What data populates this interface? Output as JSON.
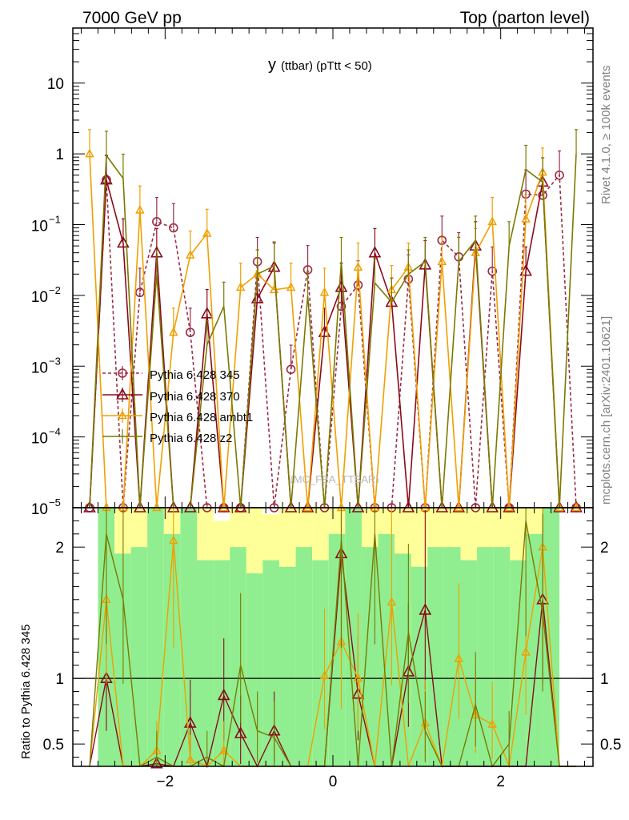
{
  "header": {
    "left": "7000 GeV pp",
    "right": "Top (parton level)"
  },
  "side_labels": {
    "right_top": "Rivet 4.1.0, ≥ 100k events",
    "right_bottom": "mcplots.cern.ch [arXiv:2401.10621]"
  },
  "watermark": "(MC_FBA_TTBAR)",
  "colors": {
    "p345": "#9b2d46",
    "p370": "#8b0a1a",
    "ambt1": "#f0a000",
    "z2": "#7a7a00",
    "band_green": "#90ee90",
    "band_yellow": "#ffff99"
  },
  "chart_data": {
    "type": "line",
    "title_main": "y",
    "title_sub": "(ttbar)  (pTtt < 50)",
    "xlim": [
      -3.1,
      3.1
    ],
    "ylim_log": [
      1e-05,
      60
    ],
    "ratio_ylim": [
      0.33,
      2.3
    ],
    "x_ticks": [
      -2,
      0,
      2
    ],
    "x_tick_labels": [
      "−2",
      "0",
      "2"
    ],
    "y_ticks": [
      {
        "value": 10,
        "label": "10"
      },
      {
        "value": 1,
        "label": "1"
      },
      {
        "value": 0.1,
        "label": "10",
        "exp": "−1"
      },
      {
        "value": 0.01,
        "label": "10",
        "exp": "−2"
      },
      {
        "value": 0.001,
        "label": "10",
        "exp": "−3"
      },
      {
        "value": 0.0001,
        "label": "10",
        "exp": "−4"
      },
      {
        "value": 1e-05,
        "label": "10",
        "exp": "−5"
      }
    ],
    "ratio_ticks": [
      {
        "value": 0.5,
        "label": "0.5"
      },
      {
        "value": 1,
        "label": "1"
      },
      {
        "value": 2,
        "label": "2"
      }
    ],
    "ratio_ylabel": "Ratio to Pythia 6.428 345",
    "x": [
      -2.9,
      -2.7,
      -2.5,
      -2.3,
      -2.1,
      -1.9,
      -1.7,
      -1.5,
      -1.3,
      -1.1,
      -0.9,
      -0.7,
      -0.5,
      -0.3,
      -0.1,
      0.1,
      0.3,
      0.5,
      0.7,
      0.9,
      1.1,
      1.3,
      1.5,
      1.7,
      1.9,
      2.1,
      2.3,
      2.5,
      2.7,
      2.9
    ],
    "series": [
      {
        "name": "Pythia 6.428 345",
        "key": "p345",
        "marker": "circle",
        "dash": "4,3",
        "values": [
          1e-05,
          0.43,
          1e-05,
          0.011,
          0.11,
          0.09,
          0.003,
          1e-05,
          1e-05,
          1e-05,
          0.03,
          1e-05,
          0.0009,
          0.023,
          1e-05,
          0.007,
          0.014,
          1e-05,
          1e-05,
          0.017,
          1e-05,
          0.06,
          0.035,
          1e-05,
          0.022,
          1e-05,
          0.27,
          0.26,
          0.5,
          1e-05
        ]
      },
      {
        "name": "Pythia 6.428 370",
        "key": "p370",
        "marker": "triangle",
        "dash": "",
        "values": [
          1e-05,
          0.43,
          0.055,
          1e-05,
          0.04,
          1e-05,
          1e-05,
          0.0055,
          1e-05,
          1e-05,
          0.009,
          0.025,
          1e-05,
          1e-05,
          0.003,
          0.013,
          1e-05,
          0.04,
          0.008,
          1e-05,
          0.027,
          1e-05,
          1e-05,
          0.05,
          1e-05,
          1e-05,
          0.022,
          0.4,
          1e-05,
          1e-05
        ]
      },
      {
        "name": "Pythia 6.428 ambt1",
        "key": "ambt1",
        "marker": "triangle-small",
        "dash": "",
        "values": [
          1.0,
          1e-05,
          1e-05,
          0.16,
          1e-05,
          0.003,
          0.037,
          0.075,
          1e-05,
          0.013,
          0.02,
          0.012,
          0.013,
          1e-05,
          0.011,
          1e-05,
          0.025,
          1e-05,
          0.012,
          0.025,
          1e-05,
          0.03,
          1e-05,
          0.04,
          0.11,
          1e-05,
          0.12,
          0.55,
          1e-05,
          1e-05
        ]
      },
      {
        "name": "Pythia 6.428 z2",
        "key": "z2",
        "marker": "none",
        "dash": "",
        "values": [
          1e-05,
          0.95,
          0.45,
          1e-05,
          0.02,
          1e-05,
          1e-05,
          0.002,
          0.007,
          1e-05,
          0.02,
          0.026,
          1e-05,
          0.01,
          1e-05,
          0.03,
          1e-05,
          0.015,
          0.008,
          0.02,
          0.03,
          1e-05,
          0.03,
          0.06,
          1e-05,
          0.05,
          0.6,
          0.4,
          1e-05,
          1.0
        ]
      }
    ],
    "ratio_series": [
      {
        "key": "p370",
        "values": [
          null,
          1.0,
          null,
          null,
          0.35,
          null,
          0.66,
          null,
          0.87,
          0.58,
          null,
          0.6,
          null,
          null,
          null,
          1.95,
          0.88,
          null,
          null,
          1.05,
          1.52,
          null,
          null,
          null,
          null,
          null,
          null,
          1.6,
          null,
          null
        ]
      },
      {
        "key": "ambt1",
        "values": [
          null,
          1.6,
          null,
          null,
          0.45,
          2.05,
          0.38,
          null,
          0.45,
          null,
          null,
          null,
          null,
          null,
          1.02,
          1.28,
          1.0,
          null,
          1.58,
          null,
          0.66,
          null,
          1.15,
          0.72,
          0.65,
          null,
          1.2,
          2.0,
          null,
          null
        ]
      },
      {
        "key": "z2",
        "values": [
          null,
          2.1,
          1.6,
          null,
          0.4,
          null,
          null,
          0.4,
          null,
          1.1,
          0.6,
          0.55,
          null,
          null,
          null,
          2.05,
          null,
          2.1,
          null,
          1.35,
          0.6,
          null,
          null,
          0.8,
          null,
          0.5,
          2.2,
          1.5,
          null,
          null
        ]
      }
    ],
    "band": {
      "x_range": [
        -2.8,
        2.7
      ],
      "green_top": [
        2.3,
        1.95,
        2.0,
        2.3,
        2.1,
        2.3,
        1.9,
        1.9,
        2.0,
        1.8,
        1.9,
        1.85,
        2.0,
        1.9,
        2.1,
        2.3,
        2.0,
        2.1,
        1.95,
        1.85,
        2.0,
        2.0,
        1.9,
        2.0,
        2.0,
        1.9,
        2.1,
        2.3
      ],
      "yellow_top": [
        2.3,
        2.3,
        2.3,
        2.3,
        2.3,
        2.3,
        2.3,
        2.2,
        2.3,
        2.3,
        2.25,
        2.3,
        2.3,
        2.3,
        2.3,
        2.3,
        2.3,
        2.3,
        2.3,
        2.3,
        2.3,
        2.3,
        2.3,
        2.3,
        2.3,
        2.3,
        2.3,
        2.3
      ],
      "green_bottom": [
        0.33,
        0.33,
        0.33,
        0.33,
        0.33,
        0.33,
        0.33,
        0.33,
        0.33,
        0.33,
        0.33,
        0.33,
        0.33,
        0.33,
        0.33,
        0.33,
        0.33,
        0.33,
        0.33,
        0.33,
        0.33,
        0.33,
        0.33,
        0.33,
        0.33,
        0.33,
        0.33,
        0.33
      ]
    }
  }
}
